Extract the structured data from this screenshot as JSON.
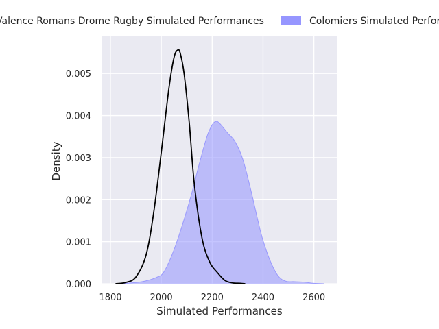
{
  "chart_data": {
    "type": "area",
    "xlabel": "Simulated Performances",
    "ylabel": "Density",
    "xlim": [
      1765,
      2690
    ],
    "ylim": [
      0,
      0.0059
    ],
    "x_ticks": [
      1800,
      2000,
      2200,
      2400,
      2600
    ],
    "x_tick_labels": [
      "1800",
      "2000",
      "2200",
      "2400",
      "2600"
    ],
    "y_ticks": [
      0,
      0.001,
      0.002,
      0.003,
      0.004,
      0.005
    ],
    "y_tick_labels": [
      "0.000",
      "0.001",
      "0.002",
      "0.003",
      "0.004",
      "0.005"
    ],
    "grid": true,
    "legend_position": "top",
    "colors": {
      "plot_background": "#eaeaf2",
      "grid": "#ffffff",
      "line_series": "#000000",
      "fill_series": "#8b8bff"
    },
    "series": [
      {
        "name": "Valence Romans Drome Rugby Simulated Performances",
        "style": "line",
        "x": [
          1820,
          1860,
          1900,
          1940,
          1970,
          2000,
          2030,
          2050,
          2065,
          2075,
          2090,
          2110,
          2130,
          2160,
          2190,
          2220,
          2250,
          2280,
          2310,
          2330
        ],
        "y": [
          0,
          3e-05,
          0.00016,
          0.00068,
          0.00169,
          0.00313,
          0.00465,
          0.00538,
          0.00556,
          0.00547,
          0.00498,
          0.00382,
          0.00236,
          0.00109,
          0.00052,
          0.00027,
          8e-05,
          2e-05,
          1e-05,
          0
        ]
      },
      {
        "name": "Colomiers Simulated Performances",
        "style": "filled",
        "x": [
          1820,
          1860,
          1900,
          1940,
          1980,
          2010,
          2050,
          2090,
          2120,
          2150,
          2180,
          2200,
          2215,
          2230,
          2260,
          2290,
          2320,
          2350,
          2380,
          2400,
          2430,
          2460,
          2490,
          2520,
          2560,
          2600,
          2640
        ],
        "y": [
          0,
          1e-05,
          3e-05,
          7e-05,
          0.00015,
          0.00028,
          0.00081,
          0.00154,
          0.00216,
          0.00287,
          0.00351,
          0.00378,
          0.00386,
          0.00381,
          0.00359,
          0.00338,
          0.00297,
          0.00228,
          0.0015,
          0.00103,
          0.00052,
          0.00018,
          6e-05,
          5e-05,
          4e-05,
          1e-05,
          0
        ]
      }
    ]
  }
}
